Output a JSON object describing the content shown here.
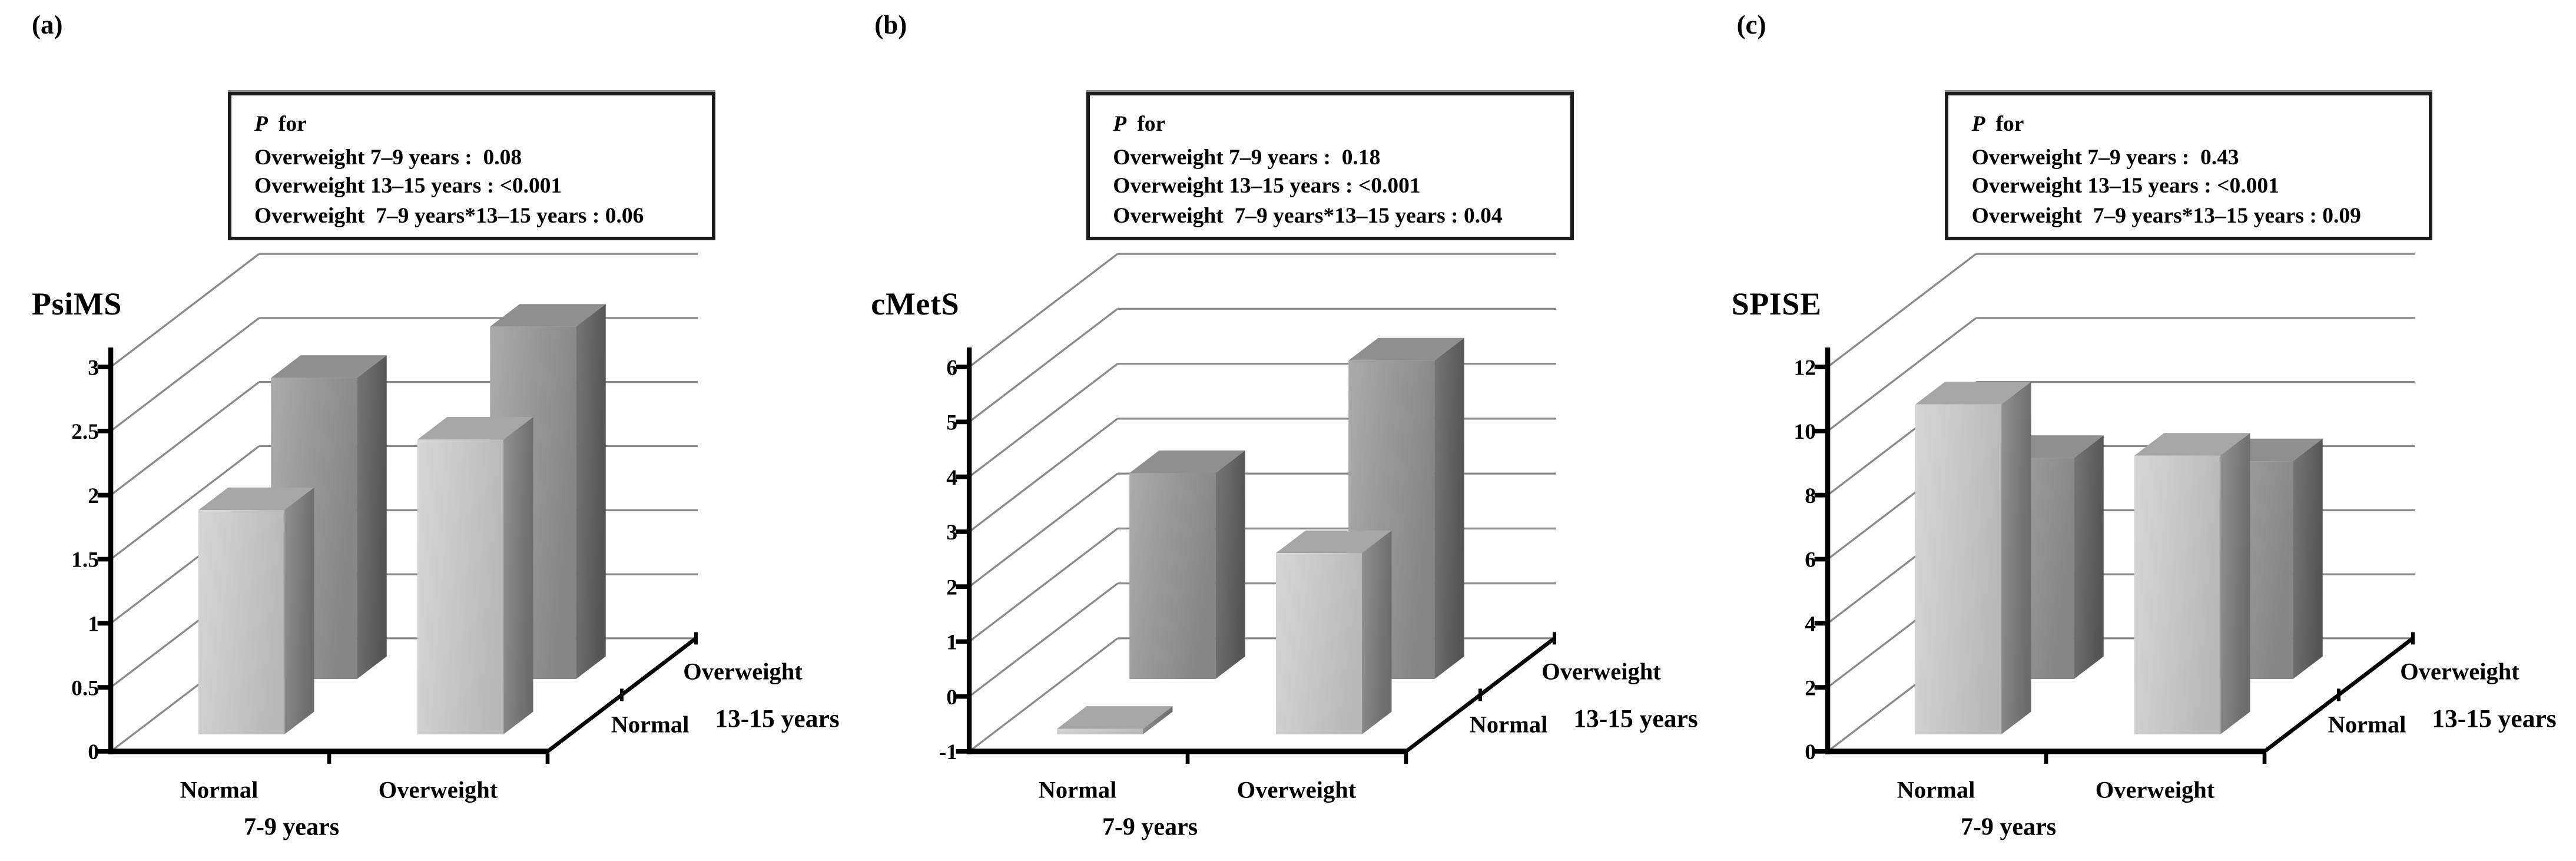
{
  "figure": {
    "background": "#ffffff",
    "panels": [
      {
        "id": "a",
        "letter": "(a)",
        "title": "PsiMS",
        "p_box": {
          "p": "P",
          "for": "for",
          "lines": [
            "Overweight 7–9 years :  0.08",
            "Overweight 13–15 years : <0.001",
            "Overweight  7–9 years*13–15 years : 0.06"
          ]
        },
        "axis": {
          "min": 0,
          "max": 3,
          "tick_values": [
            0,
            0.5,
            1,
            1.5,
            2,
            2.5,
            3
          ],
          "tick_labels": [
            "0",
            "0.5",
            "1",
            "1.5",
            "2",
            "2.5",
            "3"
          ]
        },
        "categories": [
          "Normal",
          "Overweight"
        ],
        "group_label": "7-9 years",
        "depth_front_label": "Normal",
        "depth_back_label": "Overweight",
        "depth_axis_label": "13-15 years",
        "bars": {
          "front": [
            1.75,
            2.3
          ],
          "back": [
            2.35,
            2.75
          ]
        }
      },
      {
        "id": "b",
        "letter": "(b)",
        "title": "cMetS",
        "p_box": {
          "p": "P",
          "for": "for",
          "lines": [
            "Overweight 7–9 years :  0.18",
            "Overweight 13–15 years : <0.001",
            "Overweight  7–9 years*13–15 years : 0.04"
          ]
        },
        "axis": {
          "min": -1,
          "max": 6,
          "tick_values": [
            -1,
            0,
            1,
            2,
            3,
            4,
            5,
            6
          ],
          "tick_labels": [
            "-1",
            "0",
            "1",
            "2",
            "3",
            "4",
            "5",
            "6"
          ]
        },
        "categories": [
          "Normal",
          "Overweight"
        ],
        "group_label": "7-9 years",
        "depth_front_label": "Normal",
        "depth_back_label": "Overweight",
        "depth_axis_label": "13-15 years",
        "bars": {
          "front": [
            -0.9,
            2.3
          ],
          "back": [
            2.75,
            4.8
          ]
        }
      },
      {
        "id": "c",
        "letter": "(c)",
        "title": "SPISE",
        "p_box": {
          "p": "P",
          "for": "for",
          "lines": [
            "Overweight 7–9 years :  0.43",
            "Overweight 13–15 years : <0.001",
            "Overweight  7–9 years*13–15 years : 0.09"
          ]
        },
        "axis": {
          "min": 0,
          "max": 12,
          "tick_values": [
            0,
            2,
            4,
            6,
            8,
            10,
            12
          ],
          "tick_labels": [
            "0",
            "2",
            "4",
            "6",
            "8",
            "10",
            "12"
          ]
        },
        "categories": [
          "Normal",
          "Overweight"
        ],
        "group_label": "7-9 years",
        "depth_front_label": "Normal",
        "depth_back_label": "Overweight",
        "depth_axis_label": "13-15 years",
        "bars": {
          "front": [
            10.3,
            8.7
          ],
          "back": [
            6.9,
            6.8
          ]
        }
      }
    ]
  },
  "colors": {
    "light_bar_front_start": "#d6d6d6",
    "light_bar_front_end": "#b9b9b9",
    "light_bar_top": "#a6a6a6",
    "light_bar_side_start": "#919191",
    "light_bar_side_end": "#6c6c6c",
    "dark_bar_front_start": "#ababab",
    "dark_bar_front_end": "#858585",
    "dark_bar_top": "#8f8f8f",
    "dark_bar_side_start": "#757575",
    "dark_bar_side_end": "#555555",
    "gridline": "#8a8a8a",
    "axis": "#000000",
    "text": "#000000"
  },
  "chart_data": [
    {
      "type": "bar",
      "projection": "3d-oblique",
      "title": "PsiMS",
      "categories": [
        "Normal",
        "Overweight"
      ],
      "xlabel": "7-9 years",
      "depth_categories": [
        "Normal",
        "Overweight"
      ],
      "depth_label": "13-15 years",
      "series": [
        {
          "name": "Normal 13-15 years",
          "values": [
            1.75,
            2.3
          ]
        },
        {
          "name": "Overweight 13-15 years",
          "values": [
            2.35,
            2.75
          ]
        }
      ],
      "ylim": [
        0,
        3
      ],
      "ytick_step": 0.5,
      "grid": true,
      "legend": "none",
      "p_values": {
        "Overweight 7–9 years": "0.08",
        "Overweight 13–15 years": "<0.001",
        "Overweight 7–9 years*13–15 years": "0.06"
      }
    },
    {
      "type": "bar",
      "projection": "3d-oblique",
      "title": "cMetS",
      "categories": [
        "Normal",
        "Overweight"
      ],
      "xlabel": "7-9 years",
      "depth_categories": [
        "Normal",
        "Overweight"
      ],
      "depth_label": "13-15 years",
      "series": [
        {
          "name": "Normal 13-15 years",
          "values": [
            -0.9,
            2.3
          ]
        },
        {
          "name": "Overweight 13-15 years",
          "values": [
            2.75,
            4.8
          ]
        }
      ],
      "ylim": [
        -1,
        6
      ],
      "ytick_step": 1,
      "grid": true,
      "legend": "none",
      "p_values": {
        "Overweight 7–9 years": "0.18",
        "Overweight 13–15 years": "<0.001",
        "Overweight 7–9 years*13–15 years": "0.04"
      }
    },
    {
      "type": "bar",
      "projection": "3d-oblique",
      "title": "SPISE",
      "categories": [
        "Normal",
        "Overweight"
      ],
      "xlabel": "7-9 years",
      "depth_categories": [
        "Normal",
        "Overweight"
      ],
      "depth_label": "13-15 years",
      "series": [
        {
          "name": "Normal 13-15 years",
          "values": [
            10.3,
            8.7
          ]
        },
        {
          "name": "Overweight 13-15 years",
          "values": [
            6.9,
            6.8
          ]
        }
      ],
      "ylim": [
        0,
        12
      ],
      "ytick_step": 2,
      "grid": true,
      "legend": "none",
      "p_values": {
        "Overweight 7–9 years": "0.43",
        "Overweight 13–15 years": "<0.001",
        "Overweight 7–9 years*13–15 years": "0.09"
      }
    }
  ]
}
